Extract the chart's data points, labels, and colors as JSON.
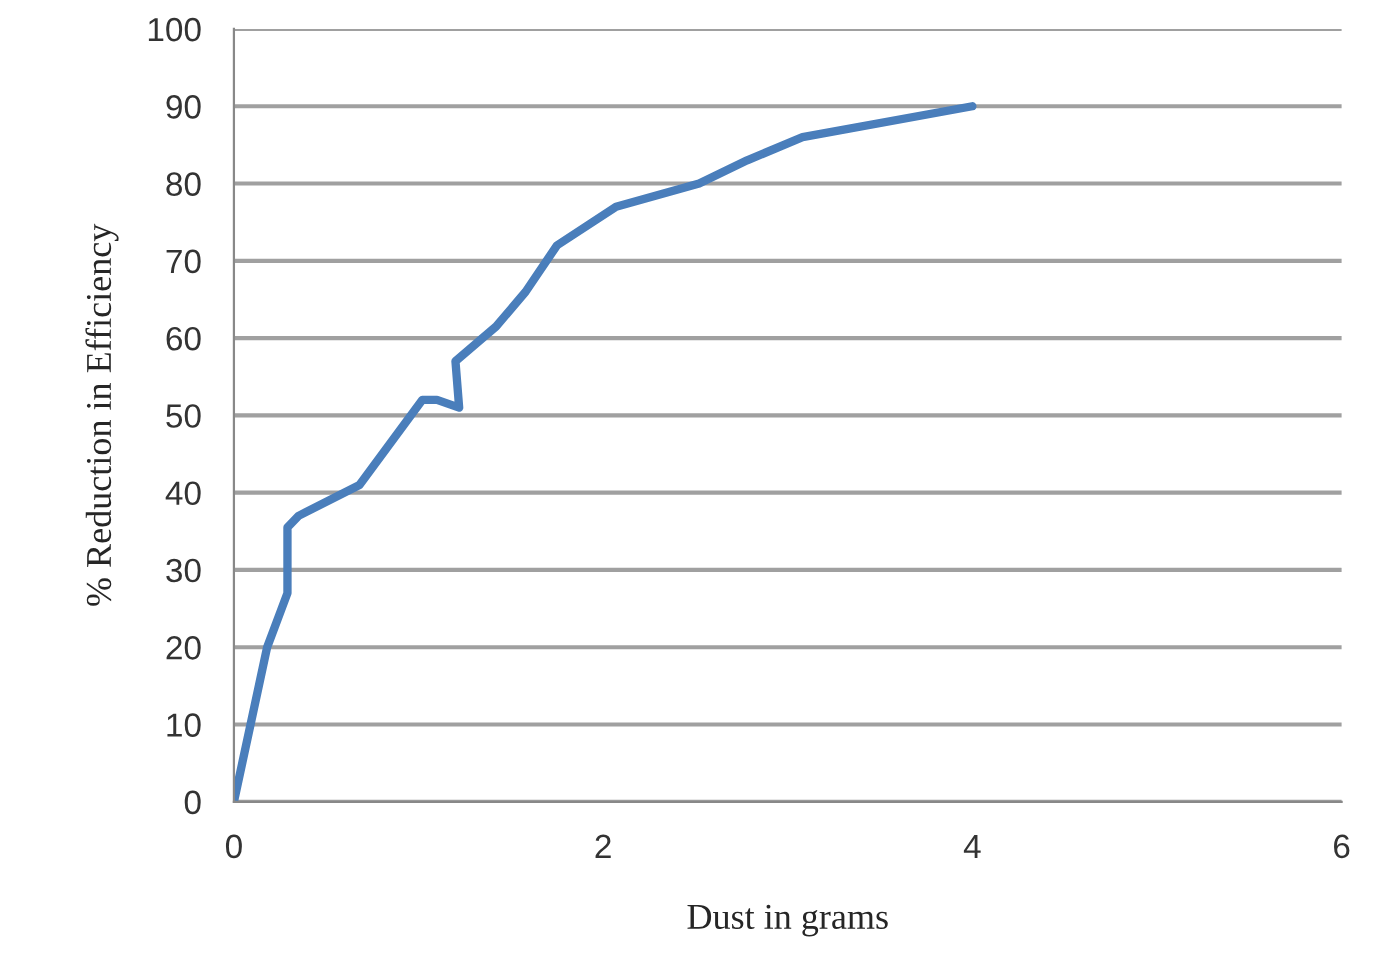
{
  "chart_data": {
    "type": "line",
    "xlabel": "Dust in grams",
    "ylabel": "% Reduction in Efficiency",
    "xlim": [
      0,
      6
    ],
    "xticks": [
      0,
      2,
      4,
      6
    ],
    "ylim": [
      0,
      100
    ],
    "yticks": [
      0,
      10,
      20,
      30,
      40,
      50,
      60,
      70,
      80,
      90,
      100
    ],
    "grid": "y",
    "series": [
      {
        "color": "#4a7ebb",
        "x": [
          0,
          0.18,
          0.29,
          0.29,
          0.35,
          0.68,
          1.02,
          1.1,
          1.22,
          1.2,
          1.42,
          1.58,
          1.75,
          2.07,
          2.52,
          2.78,
          3.08,
          4.0
        ],
        "values": [
          0,
          20,
          27,
          35.5,
          37,
          41,
          52,
          52,
          51,
          57,
          61.5,
          66,
          72,
          77,
          80,
          83,
          86,
          90
        ]
      }
    ]
  }
}
